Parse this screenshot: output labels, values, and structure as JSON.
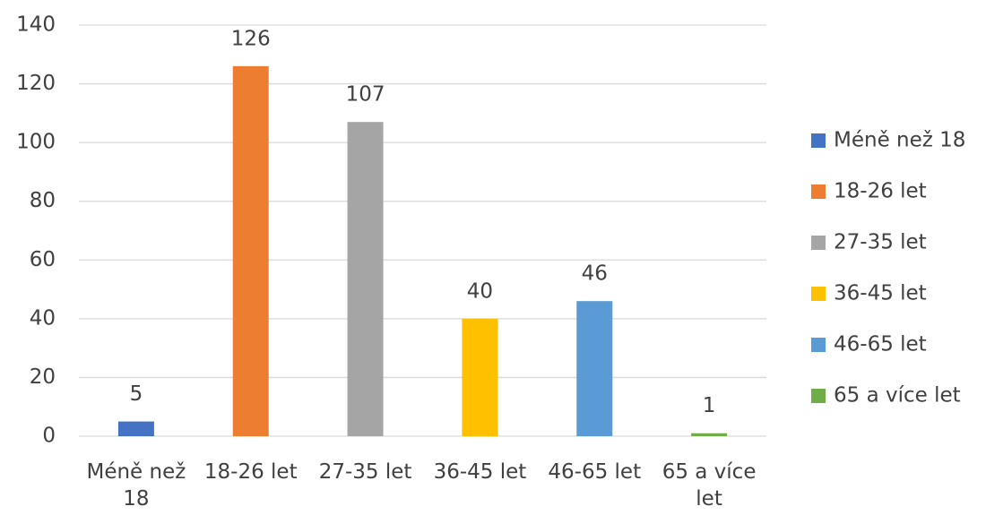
{
  "chart_data": {
    "type": "bar",
    "categories": [
      "Méně než 18",
      "18-26 let",
      "27-35 let",
      "36-45 let",
      "46-65 let",
      "65 a více let"
    ],
    "values": [
      5,
      126,
      107,
      40,
      46,
      1
    ],
    "colors": [
      "#4472c4",
      "#ed7d31",
      "#a5a5a5",
      "#ffc000",
      "#5b9bd5",
      "#70ad47"
    ],
    "ylim": [
      0,
      140
    ],
    "yticks": [
      0,
      20,
      40,
      60,
      80,
      100,
      120,
      140
    ],
    "grid": true,
    "legend": "right"
  }
}
